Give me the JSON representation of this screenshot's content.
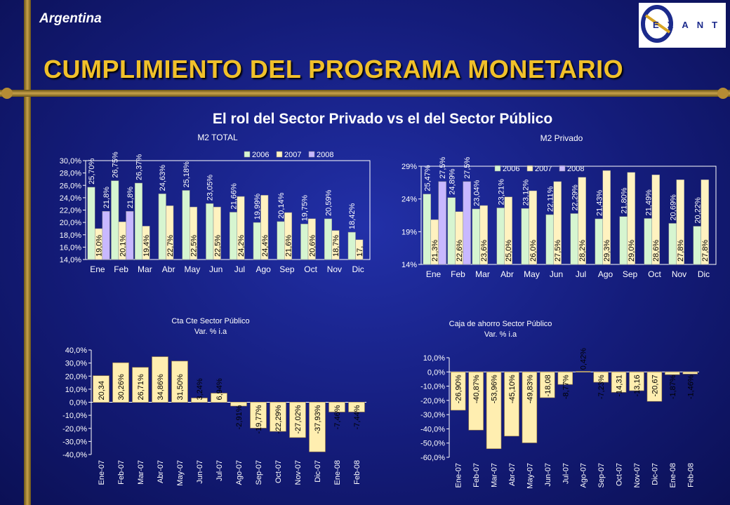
{
  "header": {
    "country": "Argentina",
    "title": "CUMPLIMIENTO DEL PROGRAMA MONETARIO",
    "subtitle": "El rol del Sector Privado vs el del Sector Público",
    "logo_text": "EXANTE"
  },
  "colors": {
    "s2006": "#d6f5d0",
    "s2007": "#fff2c0",
    "s2008": "#c8b8ff",
    "neg_bar": "#ffeeb0",
    "pos_bar": "#ffeeb0"
  },
  "chart_data": [
    {
      "id": "m2-total",
      "type": "bar",
      "title": "M2 TOTAL",
      "categories": [
        "Ene",
        "Feb",
        "Mar",
        "Abr",
        "May",
        "Jun",
        "Jul",
        "Ago",
        "Sep",
        "Oct",
        "Nov",
        "Dic"
      ],
      "ylim": [
        14,
        30
      ],
      "yticks": [
        "14,0%",
        "16,0%",
        "18,0%",
        "20,0%",
        "22,0%",
        "24,0%",
        "26,0%",
        "28,0%",
        "30,0%"
      ],
      "legend": [
        "2006",
        "2007",
        "2008"
      ],
      "series": [
        {
          "name": "2006",
          "values": [
            25.7,
            26.75,
            26.37,
            24.63,
            25.18,
            23.05,
            21.66,
            19.99,
            20.14,
            19.75,
            20.59,
            18.42
          ],
          "labels": [
            "25,70%",
            "26,75%",
            "26,37%",
            "24,63%",
            "25,18%",
            "23,05%",
            "21,66%",
            "19,99%",
            "20,14%",
            "19,75%",
            "20,59%",
            "18,42%"
          ]
        },
        {
          "name": "2007",
          "values": [
            19.0,
            20.1,
            19.4,
            22.7,
            22.5,
            22.5,
            24.2,
            24.4,
            21.6,
            20.6,
            18.7,
            17.2
          ],
          "labels": [
            "19,0%",
            "20,1%",
            "19,4%",
            "22,7%",
            "22,5%",
            "22,5%",
            "24,2%",
            "24,4%",
            "21,6%",
            "20,6%",
            "18,7%",
            "17,"
          ]
        },
        {
          "name": "2008",
          "values": [
            21.8,
            21.8,
            null,
            null,
            null,
            null,
            null,
            null,
            null,
            null,
            null,
            null
          ],
          "labels": [
            "21,8%",
            "21,8%",
            "",
            "",
            "",
            "",
            "",
            "",
            "",
            "",
            "",
            ""
          ]
        }
      ]
    },
    {
      "id": "m2-privado",
      "type": "bar",
      "title": "M2 Privado",
      "categories": [
        "Ene",
        "Feb",
        "Mar",
        "Abr",
        "May",
        "Jun",
        "Jul",
        "Ago",
        "Sep",
        "Oct",
        "Nov",
        "Dic"
      ],
      "ylim": [
        14,
        30
      ],
      "yticks": [
        "14%",
        "19%",
        "24%",
        "29%"
      ],
      "legend": [
        "2006",
        "2007",
        "2008"
      ],
      "series": [
        {
          "name": "2006",
          "values": [
            25.47,
            24.89,
            23.04,
            23.21,
            23.12,
            22.11,
            22.29,
            21.43,
            21.8,
            21.49,
            20.69,
            20.22
          ],
          "labels": [
            "25,47%",
            "24,89%",
            "23,04%",
            "23,21%",
            "23,12%",
            "22,11%",
            "22,29%",
            "21,43%",
            "21,80%",
            "21,49%",
            "20,69%",
            "20,22%"
          ]
        },
        {
          "name": "2007",
          "values": [
            21.3,
            22.6,
            23.6,
            25.0,
            26.0,
            27.5,
            28.2,
            29.3,
            29.0,
            28.6,
            27.8,
            27.8
          ],
          "labels": [
            "21,3%",
            "22,6%",
            "23,6%",
            "25,0%",
            "26,0%",
            "27,5%",
            "28,2%",
            "29,3%",
            "29,0%",
            "28,6%",
            "27,8%",
            "27,8%"
          ]
        },
        {
          "name": "2008",
          "values": [
            27.5,
            27.5,
            null,
            null,
            null,
            null,
            null,
            null,
            null,
            null,
            null,
            null
          ],
          "labels": [
            "27,5%",
            "27,5%",
            "",
            "",
            "",
            "",
            "",
            "",
            "",
            "",
            "",
            ""
          ]
        }
      ]
    },
    {
      "id": "cta-cte",
      "type": "bar",
      "title": "Cta Cte Sector Público",
      "subtitle": "Var. % i.a",
      "categories": [
        "Ene-07",
        "Feb-07",
        "Mar-07",
        "Abr-07",
        "May-07",
        "Jun-07",
        "Jul-07",
        "Ago-07",
        "Sep-07",
        "Oct-07",
        "Nov-07",
        "Dic-07",
        "Ene-08",
        "Feb-08"
      ],
      "ylim": [
        -40,
        40
      ],
      "yticks": [
        "-40,0%",
        "-30,0%",
        "-20,0%",
        "-10,0%",
        "0,0%",
        "10,0%",
        "20,0%",
        "30,0%",
        "40,0%"
      ],
      "values": [
        20.34,
        30.26,
        26.71,
        34.86,
        31.5,
        3.24,
        6.94,
        -2.91,
        -19.77,
        -22.29,
        -27.02,
        -37.93,
        -7.46,
        -7.44
      ],
      "labels": [
        "20,34",
        "30,26%",
        "26,71%",
        "34,86%",
        "31,50%",
        "3,24%",
        "6,94%",
        "-2,91%",
        "-19,77%",
        "-22,29%",
        "-27,02%",
        "-37,93%",
        "-7,46%",
        "-7,44%"
      ]
    },
    {
      "id": "caja-ahorro",
      "type": "bar",
      "title": "Caja de ahorro Sector Público",
      "subtitle": "Var. % i.a",
      "categories": [
        "Ene-07",
        "Feb-07",
        "Mar-07",
        "Abr-07",
        "May-07",
        "Jun-07",
        "Jul-07",
        "Ago-07",
        "Sep-07",
        "Oct-07",
        "Nov-07",
        "Dic-07",
        "Ene-08",
        "Feb-08"
      ],
      "ylim": [
        -60,
        10
      ],
      "yticks": [
        "-60,0%",
        "-50,0%",
        "-40,0%",
        "-30,0%",
        "-20,0%",
        "-10,0%",
        "0,0%",
        "10,0%"
      ],
      "values": [
        -26.9,
        -40.87,
        -53.96,
        -45.1,
        -49.83,
        -18.08,
        -8.77,
        0.42,
        -7.23,
        -14.31,
        -13.16,
        -20.67,
        -1.87,
        -1.46
      ],
      "labels": [
        "-26,90%",
        "-40,87%",
        "-53,96%",
        "-45,10%",
        "-49,83%",
        "-18,08",
        "-8,77%",
        "0,42%",
        "-7,23%",
        "-14,31",
        "-13,16",
        "-20,67",
        "-1,87%",
        "-1,46%"
      ]
    }
  ]
}
